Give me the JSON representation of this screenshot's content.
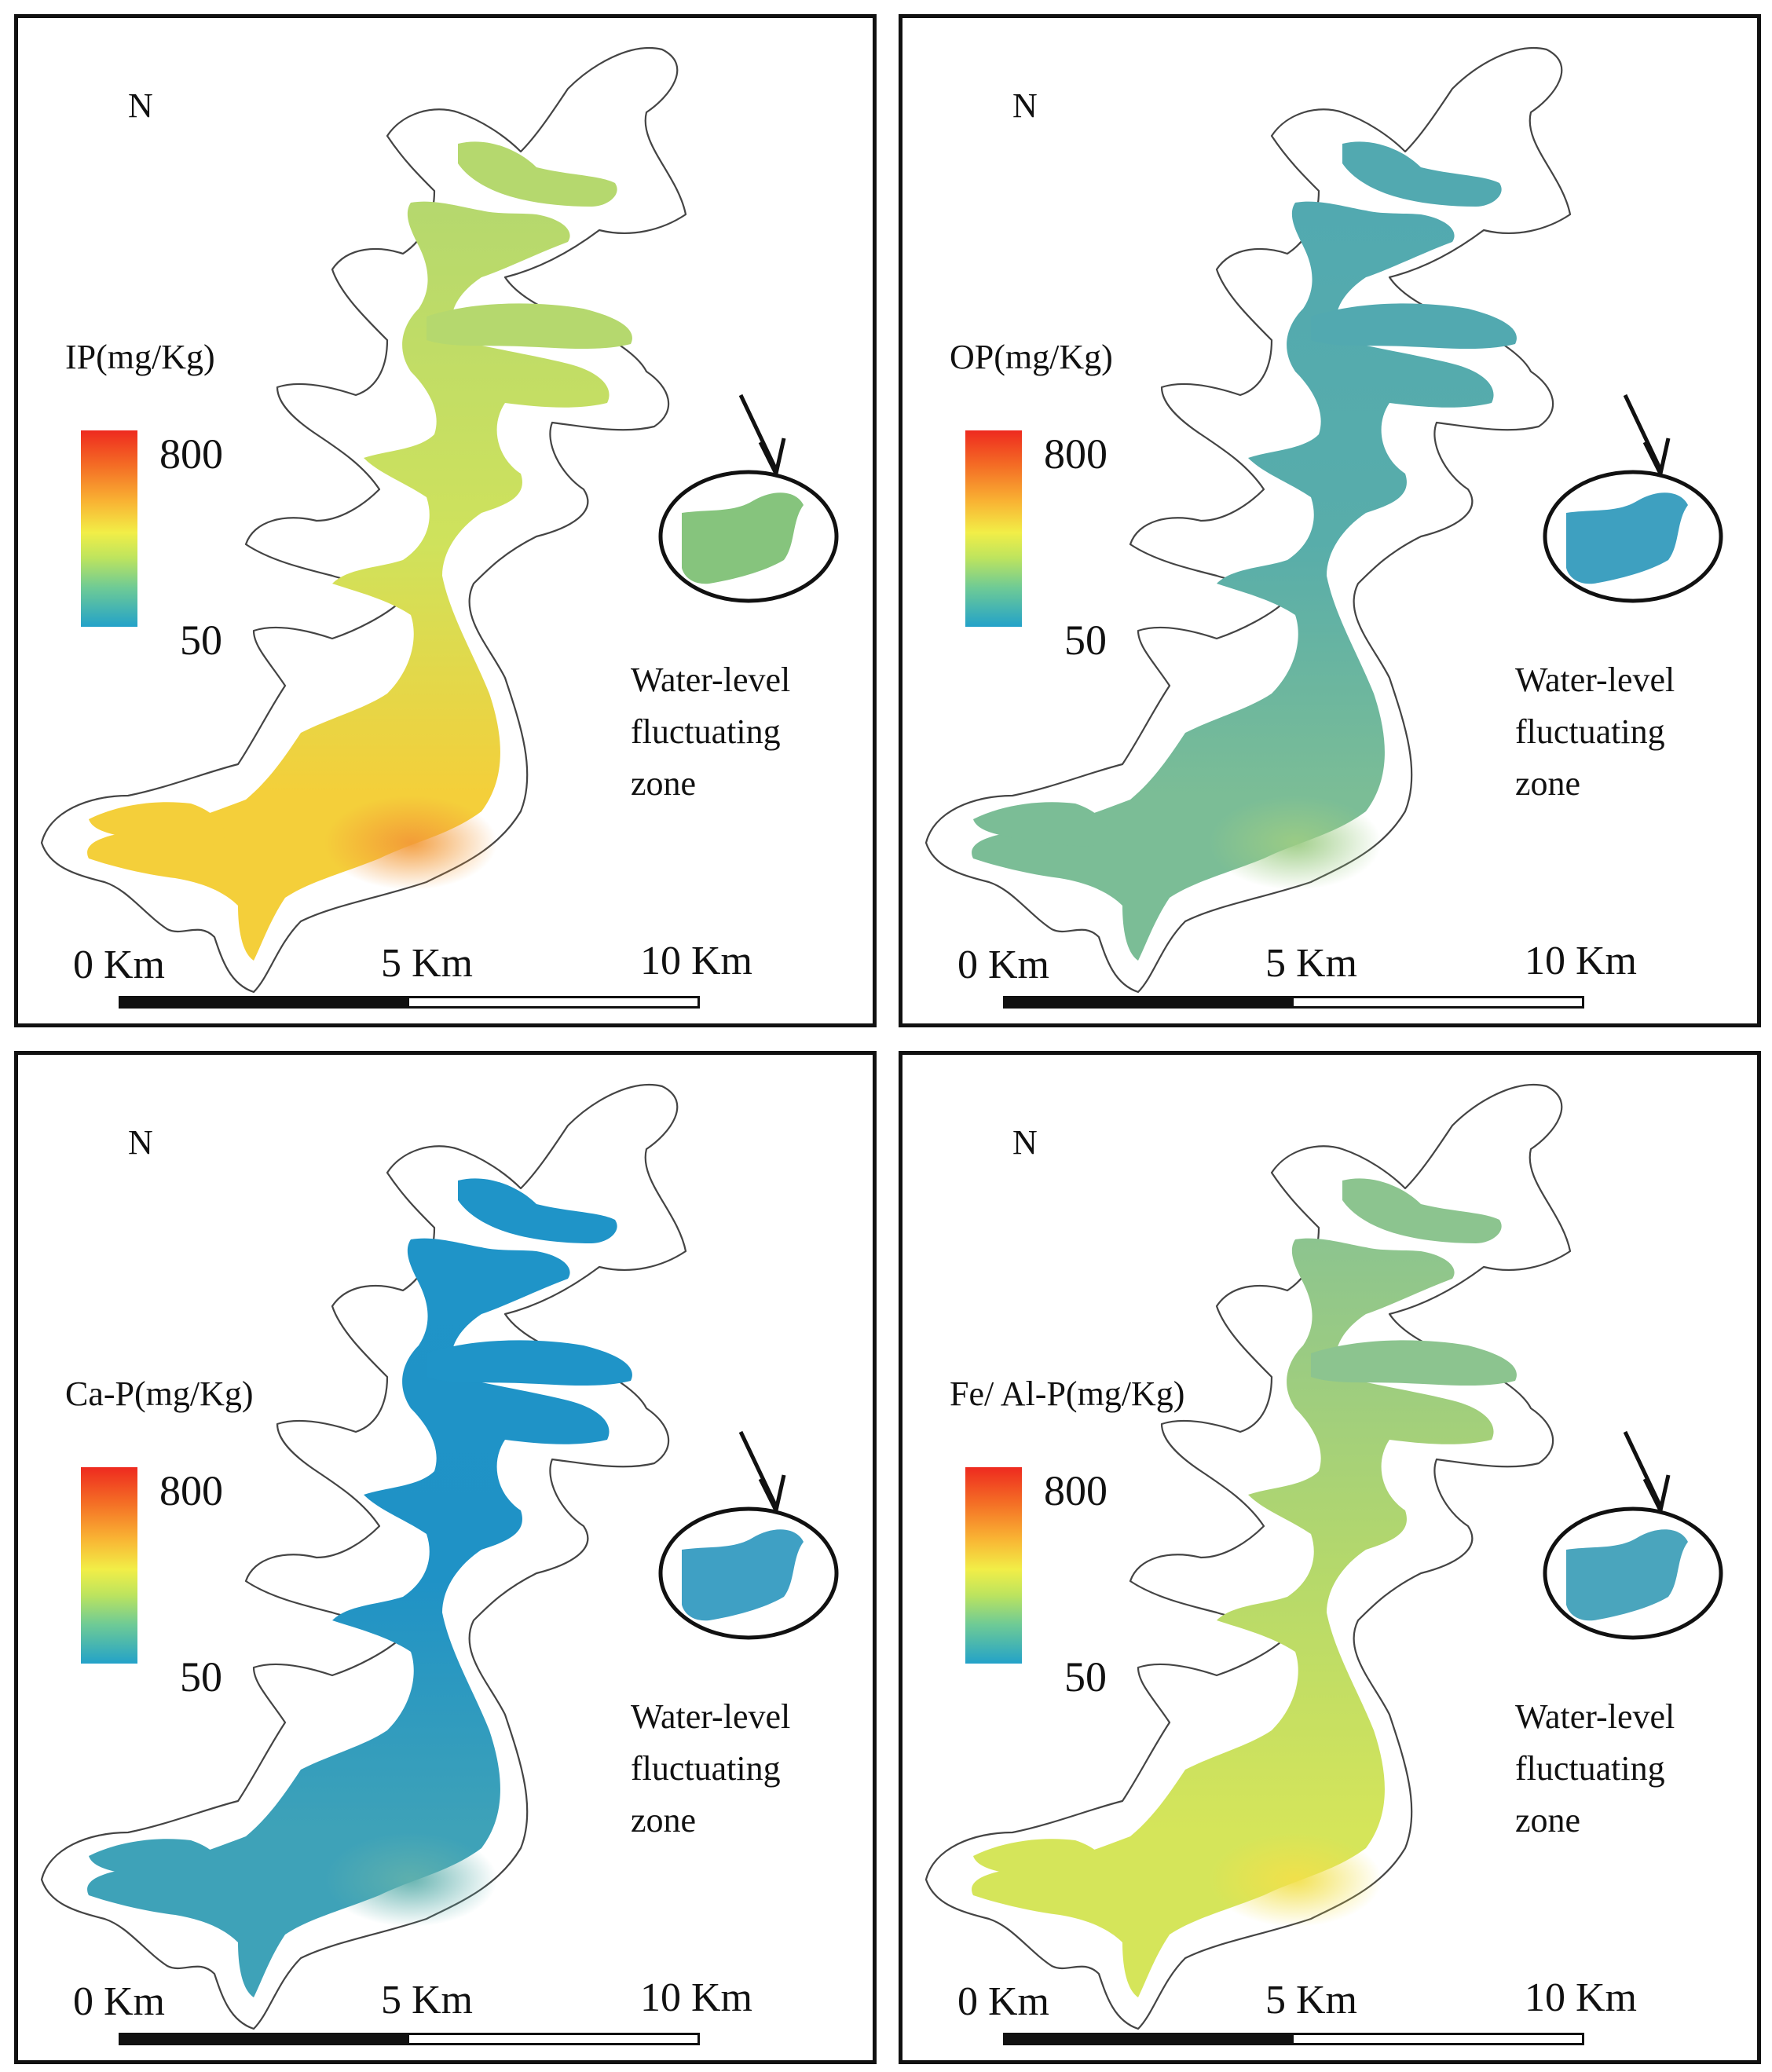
{
  "panels": [
    {
      "north": "N",
      "variable": "IP(mg/Kg)",
      "colorbar": {
        "max": "800",
        "min": "50"
      },
      "scale": {
        "s0": "0 Km",
        "s5": "5 Km",
        "s10": "10 Km"
      },
      "zone_lines": [
        "Water-level",
        "fluctuating",
        "zone"
      ],
      "colors": {
        "upper": "#b5d86e",
        "middle": "#cfe25c",
        "lower": "#f4cf3a",
        "hot": "#f39a38",
        "inset": "#86c47d"
      }
    },
    {
      "north": "N",
      "variable": "OP(mg/Kg)",
      "colorbar": {
        "max": "800",
        "min": "50"
      },
      "scale": {
        "s0": "0 Km",
        "s5": "5 Km",
        "s10": "10 Km"
      },
      "zone_lines": [
        "Water-level",
        "fluctuating",
        "zone"
      ],
      "colors": {
        "upper": "#52a9b0",
        "middle": "#58adaa",
        "lower": "#7bbd96",
        "hot": "#9ccc84",
        "inset": "#3ea0c0"
      }
    },
    {
      "north": "N",
      "variable": "Ca-P(mg/Kg)",
      "colorbar": {
        "max": "800",
        "min": "50"
      },
      "scale": {
        "s0": "0 Km",
        "s5": "5 Km",
        "s10": "10 Km"
      },
      "zone_lines": [
        "Water-level",
        "fluctuating",
        "zone"
      ],
      "colors": {
        "upper": "#1f94c8",
        "middle": "#1f92c6",
        "lower": "#3ea2b8",
        "hot": "#5fb0ad",
        "inset": "#3fa0c4"
      }
    },
    {
      "north": "N",
      "variable": "Fe/ Al-P(mg/Kg)",
      "colorbar": {
        "max": "800",
        "min": "50"
      },
      "scale": {
        "s0": "0 Km",
        "s5": "5 Km",
        "s10": "10 Km"
      },
      "zone_lines": [
        "Water-level",
        "fluctuating",
        "zone"
      ],
      "colors": {
        "upper": "#8cc48f",
        "middle": "#b6d96a",
        "lower": "#d5e55a",
        "hot": "#f2e04a",
        "inset": "#4aa5bd"
      }
    }
  ]
}
